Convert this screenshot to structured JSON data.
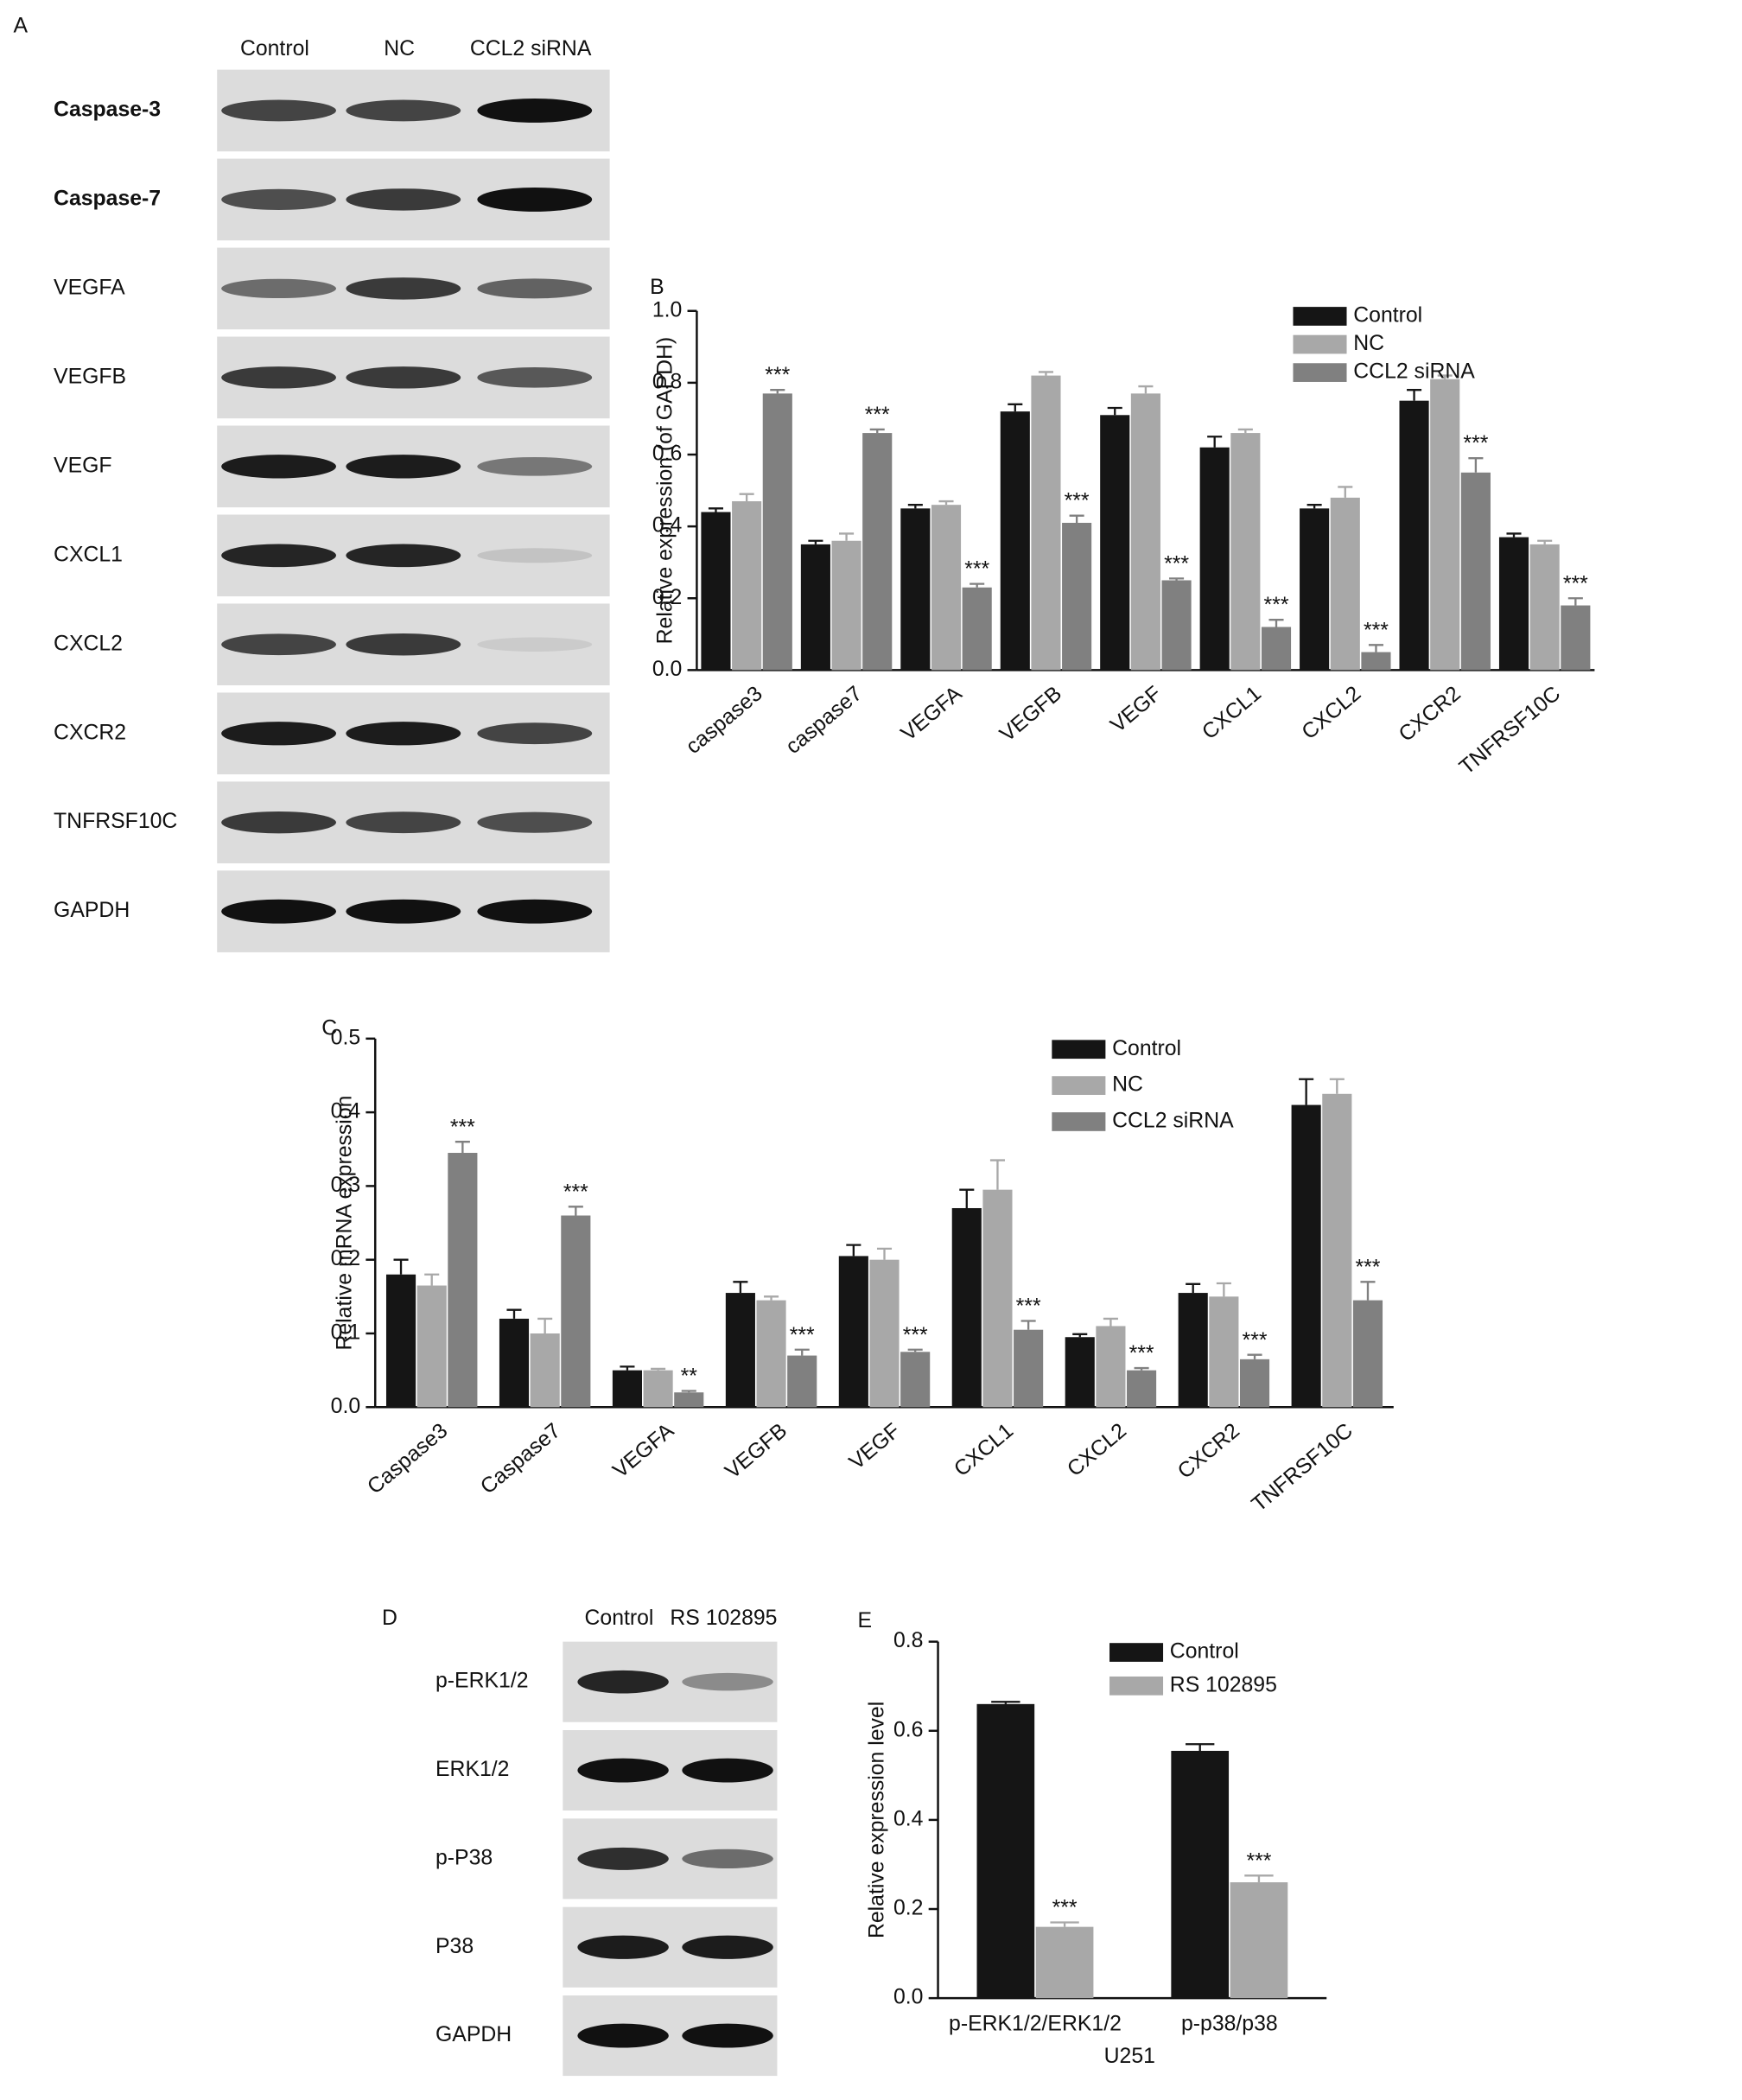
{
  "blots": [
    {
      "panel": "A",
      "lanes": [
        "Control",
        "NC",
        "CCL2 siRNA"
      ],
      "rows": [
        "Caspase-3",
        "Caspase-7",
        "VEGFA",
        "VEGFB",
        "VEGF",
        "CXCL1",
        "CXCL2",
        "CXCR2",
        "TNFRSF10C",
        "GAPDH"
      ]
    },
    {
      "panel": "D",
      "lanes": [
        "Control",
        "RS 102895"
      ],
      "rows": [
        "p-ERK1/2",
        "ERK1/2",
        "p-P38",
        "P38",
        "GAPDH"
      ]
    }
  ],
  "chart_data": [
    {
      "type": "bar",
      "panel": "B",
      "ylabel": "Relative expression (of GAPDH)",
      "categories": [
        "caspase3",
        "caspase7",
        "VEGFA",
        "VEGFB",
        "VEGF",
        "CXCL1",
        "CXCL2",
        "CXCR2",
        "TNFRSF10C"
      ],
      "series": [
        {
          "name": "Control",
          "color": "#151515",
          "values": [
            0.44,
            0.35,
            0.45,
            0.72,
            0.71,
            0.62,
            0.45,
            0.75,
            0.37
          ],
          "errors": [
            0.01,
            0.01,
            0.01,
            0.02,
            0.02,
            0.03,
            0.01,
            0.03,
            0.01
          ]
        },
        {
          "name": "NC",
          "color": "#a8a8a8",
          "values": [
            0.47,
            0.36,
            0.46,
            0.82,
            0.77,
            0.66,
            0.48,
            0.81,
            0.35
          ],
          "errors": [
            0.02,
            0.02,
            0.01,
            0.01,
            0.02,
            0.01,
            0.03,
            0.01,
            0.01
          ]
        },
        {
          "name": "CCL2 siRNA",
          "color": "#808080",
          "values": [
            0.77,
            0.66,
            0.23,
            0.41,
            0.25,
            0.12,
            0.05,
            0.55,
            0.18
          ],
          "errors": [
            0.01,
            0.01,
            0.01,
            0.02,
            0.005,
            0.02,
            0.02,
            0.04,
            0.02
          ],
          "annotations": [
            "***",
            "***",
            "***",
            "***",
            "***",
            "***",
            "***",
            "***",
            "***"
          ]
        }
      ],
      "ylim": [
        0,
        1
      ],
      "yticks": [
        {
          "value": 0,
          "label": "0.0"
        },
        0.2,
        0.4,
        0.6,
        0.8,
        {
          "value": 1,
          "label": "1.0"
        }
      ]
    },
    {
      "type": "bar",
      "panel": "C",
      "ylabel": "Relative mRNA expression",
      "categories": [
        "Caspase3",
        "Caspase7",
        "VEGFA",
        "VEGFB",
        "VEGF",
        "CXCL1",
        "CXCL2",
        "CXCR2",
        "TNFRSF10C"
      ],
      "series": [
        {
          "name": "Control",
          "color": "#151515",
          "values": [
            0.18,
            0.12,
            0.05,
            0.155,
            0.205,
            0.27,
            0.095,
            0.155,
            0.41
          ],
          "errors": [
            0.02,
            0.012,
            0.005,
            0.015,
            0.015,
            0.025,
            0.004,
            0.012,
            0.035
          ]
        },
        {
          "name": "NC",
          "color": "#a8a8a8",
          "values": [
            0.165,
            0.1,
            0.05,
            0.145,
            0.2,
            0.295,
            0.11,
            0.15,
            0.425
          ],
          "errors": [
            0.015,
            0.02,
            0.002,
            0.005,
            0.015,
            0.04,
            0.01,
            0.018,
            0.02
          ]
        },
        {
          "name": "CCL2 siRNA",
          "color": "#808080",
          "values": [
            0.345,
            0.26,
            0.02,
            0.07,
            0.075,
            0.105,
            0.05,
            0.065,
            0.145
          ],
          "errors": [
            0.015,
            0.012,
            0.002,
            0.008,
            0.003,
            0.012,
            0.003,
            0.006,
            0.025
          ],
          "annotations": [
            "***",
            "***",
            "**",
            "***",
            "***",
            "***",
            "***",
            "***",
            "***"
          ]
        }
      ],
      "ylim": [
        0,
        0.5
      ],
      "yticks": [
        {
          "value": 0,
          "label": "0.0"
        },
        0.1,
        0.2,
        0.3,
        0.4,
        0.5
      ]
    },
    {
      "type": "bar",
      "panel": "E",
      "ylabel": "Relative  expression level",
      "xlabel": "U251",
      "categories": [
        "p-ERK1/2/ERK1/2",
        "p-p38/p38"
      ],
      "series": [
        {
          "name": "Control",
          "color": "#151515",
          "values": [
            0.66,
            0.555
          ],
          "errors": [
            0.005,
            0.015
          ]
        },
        {
          "name": "RS 102895",
          "color": "#a8a8a8",
          "values": [
            0.16,
            0.26
          ],
          "errors": [
            0.01,
            0.015
          ],
          "annotations": [
            "***",
            "***"
          ]
        }
      ],
      "ylim": [
        0,
        0.8
      ],
      "yticks": [
        {
          "value": 0,
          "label": "0.0"
        },
        0.2,
        0.4,
        0.6,
        0.8
      ]
    }
  ]
}
